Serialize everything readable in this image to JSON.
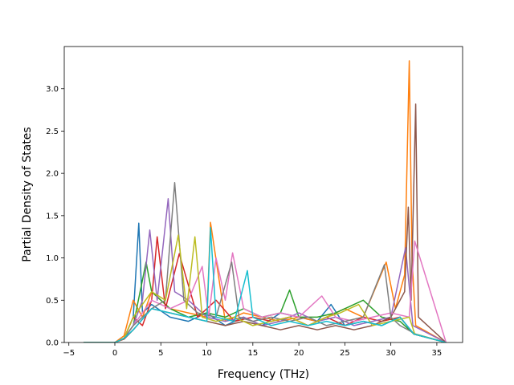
{
  "chart_data": {
    "type": "line",
    "title": "",
    "xlabel": "Frequency (THz)",
    "ylabel": "Partial Density of States",
    "xlim": [
      -5.5,
      37.8
    ],
    "ylim": [
      0.0,
      3.5
    ],
    "xticks": [
      -5,
      0,
      5,
      10,
      15,
      20,
      25,
      30,
      35
    ],
    "xtick_labels": [
      "−5",
      "0",
      "5",
      "10",
      "15",
      "20",
      "25",
      "30",
      "35"
    ],
    "yticks": [
      0.0,
      0.5,
      1.0,
      1.5,
      2.0,
      2.5,
      3.0
    ],
    "ytick_labels": [
      "0.0",
      "0.5",
      "1.0",
      "1.5",
      "2.0",
      "2.5",
      "3.0"
    ],
    "grid": false,
    "legend": "none",
    "colors": [
      "#1f77b4",
      "#ff7f0e",
      "#2ca02c",
      "#d62728",
      "#9467bd",
      "#8c564b",
      "#e377c2",
      "#7f7f7f",
      "#bcbd22",
      "#17becf"
    ],
    "series": [
      {
        "color": "#1f77b4",
        "x": [
          -3.4,
          0.0,
          1.0,
          2.0,
          2.6,
          3.0,
          4.0,
          6.0,
          8.0,
          10.0,
          12.0,
          14.0,
          16.0,
          18.0,
          20.0,
          22.0,
          23.5,
          25.0,
          27.0,
          29.0,
          31.0,
          32.5,
          36.0
        ],
        "y": [
          0.0,
          0.0,
          0.05,
          0.3,
          1.41,
          0.35,
          0.45,
          0.3,
          0.25,
          0.35,
          0.2,
          0.3,
          0.2,
          0.35,
          0.3,
          0.25,
          0.45,
          0.2,
          0.25,
          0.2,
          0.3,
          0.1,
          0.0
        ]
      },
      {
        "color": "#ff7f0e",
        "x": [
          -3.4,
          0.0,
          1.0,
          2.0,
          3.0,
          4.0,
          6.0,
          8.0,
          10.0,
          10.4,
          12.0,
          14.0,
          16.0,
          18.0,
          20.0,
          22.0,
          25.0,
          27.0,
          29.5,
          30.5,
          31.5,
          32.0,
          32.3,
          32.7,
          36.0
        ],
        "y": [
          0.0,
          0.0,
          0.08,
          0.5,
          0.3,
          0.6,
          0.4,
          0.35,
          0.3,
          1.42,
          0.25,
          0.35,
          0.3,
          0.25,
          0.3,
          0.25,
          0.4,
          0.3,
          0.95,
          0.4,
          0.8,
          3.33,
          1.0,
          0.2,
          0.0
        ]
      },
      {
        "color": "#2ca02c",
        "x": [
          -3.4,
          0.0,
          1.0,
          2.0,
          3.4,
          4.0,
          6.0,
          8.0,
          10.0,
          12.0,
          14.0,
          16.0,
          18.0,
          19.0,
          20.0,
          22.0,
          24.0,
          26.0,
          27.0,
          29.0,
          31.0,
          32.5,
          36.0
        ],
        "y": [
          0.0,
          0.0,
          0.05,
          0.2,
          0.95,
          0.6,
          0.4,
          0.3,
          0.35,
          0.3,
          0.4,
          0.3,
          0.35,
          0.62,
          0.3,
          0.3,
          0.35,
          0.45,
          0.5,
          0.3,
          0.25,
          0.1,
          0.0
        ]
      },
      {
        "color": "#d62728",
        "x": [
          -3.4,
          0.0,
          1.0,
          2.0,
          3.0,
          4.0,
          4.6,
          5.5,
          7.0,
          9.0,
          11.0,
          13.0,
          15.0,
          17.0,
          19.0,
          21.0,
          23.0,
          25.0,
          27.0,
          29.0,
          31.0,
          32.5,
          36.0
        ],
        "y": [
          0.0,
          0.0,
          0.05,
          0.3,
          0.2,
          0.5,
          1.25,
          0.4,
          1.05,
          0.3,
          0.5,
          0.25,
          0.3,
          0.25,
          0.3,
          0.2,
          0.3,
          0.2,
          0.3,
          0.25,
          0.3,
          0.1,
          0.0
        ]
      },
      {
        "color": "#9467bd",
        "x": [
          -3.4,
          0.0,
          1.0,
          2.0,
          3.0,
          3.8,
          4.6,
          5.8,
          6.5,
          8.0,
          10.0,
          12.0,
          14.0,
          16.0,
          18.0,
          20.0,
          22.0,
          24.0,
          26.0,
          28.0,
          30.0,
          31.6,
          32.4,
          36.0
        ],
        "y": [
          0.0,
          0.0,
          0.05,
          0.2,
          0.5,
          1.33,
          0.5,
          1.7,
          0.6,
          0.5,
          0.3,
          0.25,
          0.3,
          0.2,
          0.25,
          0.35,
          0.25,
          0.3,
          0.2,
          0.25,
          0.3,
          1.12,
          0.2,
          0.0
        ]
      },
      {
        "color": "#8c564b",
        "x": [
          -3.4,
          0.0,
          1.0,
          2.0,
          4.0,
          6.0,
          8.0,
          10.0,
          12.0,
          14.0,
          16.0,
          18.0,
          20.0,
          22.0,
          24.0,
          26.0,
          28.0,
          30.0,
          31.5,
          31.9,
          32.2,
          32.7,
          33.0,
          36.0
        ],
        "y": [
          0.0,
          0.0,
          0.04,
          0.15,
          0.4,
          0.35,
          0.3,
          0.25,
          0.2,
          0.25,
          0.2,
          0.15,
          0.2,
          0.15,
          0.2,
          0.15,
          0.2,
          0.3,
          0.6,
          1.6,
          0.5,
          2.82,
          0.3,
          0.0
        ]
      },
      {
        "color": "#e377c2",
        "x": [
          -3.4,
          0.0,
          1.0,
          2.0,
          4.0,
          6.0,
          8.0,
          9.5,
          10.2,
          11.0,
          12.0,
          12.8,
          14.0,
          16.0,
          18.0,
          20.0,
          22.5,
          24.0,
          26.0,
          28.0,
          30.0,
          32.0,
          32.6,
          36.0
        ],
        "y": [
          0.0,
          0.0,
          0.05,
          0.2,
          0.5,
          0.4,
          0.5,
          0.9,
          0.3,
          1.0,
          0.5,
          1.06,
          0.4,
          0.3,
          0.35,
          0.3,
          0.55,
          0.3,
          0.25,
          0.3,
          0.35,
          0.3,
          1.2,
          0.0
        ]
      },
      {
        "color": "#7f7f7f",
        "x": [
          -3.4,
          0.0,
          1.0,
          2.0,
          4.0,
          5.5,
          6.5,
          7.5,
          9.0,
          11.0,
          12.7,
          13.5,
          15.0,
          17.0,
          19.0,
          21.0,
          23.0,
          25.0,
          27.0,
          29.3,
          30.0,
          31.0,
          32.7,
          36.0
        ],
        "y": [
          0.0,
          0.0,
          0.05,
          0.2,
          0.4,
          0.5,
          1.89,
          0.5,
          0.35,
          0.3,
          0.95,
          0.3,
          0.25,
          0.3,
          0.25,
          0.3,
          0.2,
          0.25,
          0.3,
          0.92,
          0.3,
          0.2,
          0.1,
          0.0
        ]
      },
      {
        "color": "#bcbd22",
        "x": [
          -3.4,
          0.0,
          1.0,
          2.0,
          4.0,
          5.5,
          6.9,
          7.8,
          8.7,
          9.5,
          11.0,
          13.0,
          15.0,
          17.0,
          19.0,
          21.0,
          23.0,
          24.5,
          26.5,
          28.0,
          30.0,
          32.0,
          32.6,
          36.0
        ],
        "y": [
          0.0,
          0.0,
          0.05,
          0.3,
          0.6,
          0.5,
          1.27,
          0.4,
          1.25,
          0.3,
          0.25,
          0.3,
          0.2,
          0.25,
          0.3,
          0.2,
          0.3,
          0.35,
          0.45,
          0.2,
          0.25,
          0.3,
          0.1,
          0.0
        ]
      },
      {
        "color": "#17becf",
        "x": [
          -3.4,
          0.0,
          1.0,
          2.0,
          4.0,
          6.0,
          8.0,
          10.0,
          10.4,
          11.0,
          13.0,
          14.4,
          15.0,
          17.0,
          19.0,
          21.0,
          23.0,
          25.0,
          27.0,
          29.0,
          31.0,
          32.5,
          36.0
        ],
        "y": [
          0.0,
          0.0,
          0.05,
          0.15,
          0.4,
          0.35,
          0.3,
          0.25,
          1.36,
          0.3,
          0.25,
          0.85,
          0.3,
          0.2,
          0.25,
          0.2,
          0.25,
          0.2,
          0.25,
          0.2,
          0.3,
          0.1,
          0.0
        ]
      }
    ]
  }
}
